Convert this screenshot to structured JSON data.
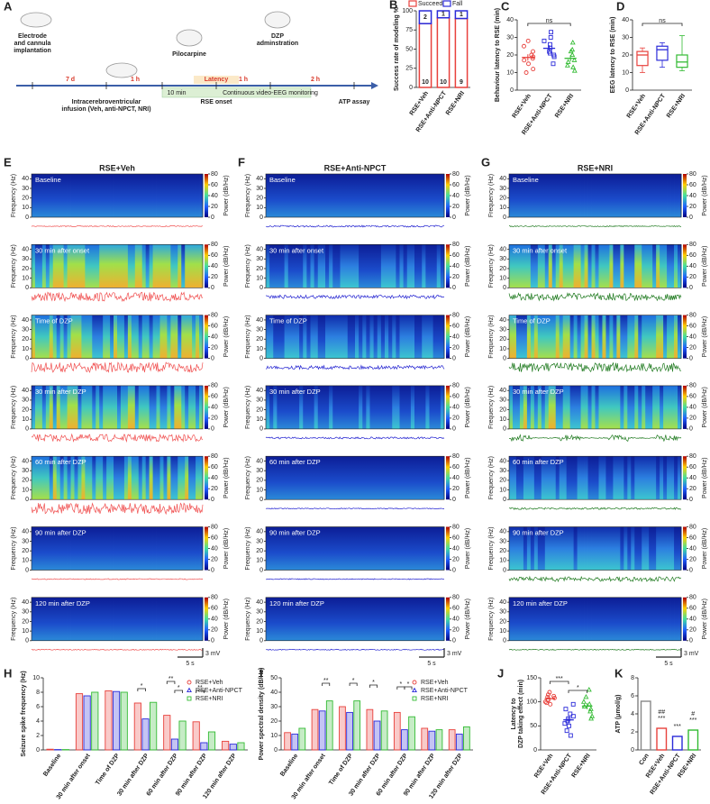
{
  "timeline": {
    "label": "A",
    "steps": [
      {
        "lines": [
          "Electrode",
          "and cannula",
          "implantation"
        ]
      },
      {
        "lines": [
          "Intracerebroventricular",
          "infusion (Veh, anti-NPCT, NRI)"
        ]
      },
      {
        "lines": [
          "Pilocarpine"
        ]
      },
      {
        "lines": [
          "RSE onset"
        ]
      },
      {
        "lines": [
          "DZP",
          "adminstration"
        ]
      },
      {
        "lines": [
          "ATP assay"
        ]
      }
    ],
    "intervals": [
      "7 d",
      "1 h",
      "Latency",
      "1 h",
      "2 h"
    ],
    "band": [
      "10 min",
      "Continuous video-EEG monitoring"
    ]
  },
  "spectrograms": {
    "panels": [
      {
        "label": "E",
        "title": "RSE+Veh",
        "color": "#f05050"
      },
      {
        "label": "F",
        "title": "RSE+Anti-NPCT",
        "color": "#2020d0"
      },
      {
        "label": "G",
        "title": "RSE+NRI",
        "color": "#1f7a1f"
      }
    ],
    "rows": [
      "Baseline",
      "30 min after onset",
      "Time of DZP",
      "30 min after DZP",
      "60 min after DZP",
      "90 min after DZP",
      "120 min after DZP"
    ],
    "freq_axis": {
      "label": "Frequency (Hz)",
      "lim": [
        0,
        45
      ],
      "ticks": [
        0,
        10,
        20,
        30,
        40
      ]
    },
    "power_axis": {
      "label": "Power (dB/Hz)",
      "lim": [
        0,
        80
      ],
      "ticks": [
        0,
        20,
        40,
        60,
        80
      ]
    },
    "time_scale": "5 s",
    "amp_scale": "3 mV"
  },
  "chart_data": [
    {
      "type": "bar",
      "label": "B",
      "stacked": true,
      "legend": "top",
      "y_label": "Success rate of modeling %",
      "categories": [
        "RSE+Veh",
        "RSE+Anti-NPCT",
        "RSE+NRI"
      ],
      "series": [
        {
          "name": "Succeed",
          "color": "#e8413c",
          "values": [
            83.3,
            90.9,
            90
          ],
          "counts": [
            10,
            10,
            9
          ]
        },
        {
          "name": "Fall",
          "color": "#2b2bd9",
          "values": [
            16.7,
            9.1,
            10
          ],
          "counts": [
            2,
            1,
            1
          ]
        }
      ],
      "ylim": [
        0,
        100
      ],
      "yticks": [
        0,
        25,
        50,
        75,
        100
      ]
    },
    {
      "type": "dot",
      "label": "C",
      "y_label": "Behaviour latency to RSE (min)",
      "categories": [
        "RSE+Veh",
        "RSE+Anti-NPCT",
        "RSE+NRI"
      ],
      "colors": [
        "#e8413c",
        "#2b2bd9",
        "#33bb33"
      ],
      "markers": [
        "circle",
        "square",
        "triangle"
      ],
      "points": [
        [
          28,
          25,
          22,
          20,
          19,
          18,
          17,
          15,
          12,
          10
        ],
        [
          33,
          30,
          28,
          26,
          24,
          22,
          21,
          20,
          19,
          15
        ],
        [
          27,
          23,
          22,
          20,
          17,
          16,
          14,
          13,
          11
        ]
      ],
      "means": [
        18.6,
        23.8,
        18.1
      ],
      "sems": [
        1.8,
        1.7,
        1.8
      ],
      "annotations": [
        "ns"
      ],
      "ylim": [
        0,
        40
      ],
      "yticks": [
        0,
        10,
        20,
        30,
        40
      ]
    },
    {
      "type": "box",
      "label": "D",
      "y_label": "EEG latency to RSE (min)",
      "categories": [
        "RSE+Veh",
        "RSE+Anti-NPCT",
        "RSE+NRI"
      ],
      "colors": [
        "#e8413c",
        "#2b2bd9",
        "#33bb33"
      ],
      "boxes": [
        {
          "min": 10,
          "q1": 14,
          "median": 20,
          "q3": 22,
          "max": 24
        },
        {
          "min": 13,
          "q1": 17,
          "median": 23,
          "q3": 25,
          "max": 27
        },
        {
          "min": 11,
          "q1": 13,
          "median": 16,
          "q3": 20,
          "max": 31
        }
      ],
      "annotations": [
        "ns"
      ],
      "ylim": [
        0,
        40
      ],
      "yticks": [
        0,
        10,
        20,
        30,
        40
      ]
    },
    {
      "type": "bar",
      "label": "H",
      "legend": "upper right",
      "y_label": "Seizure spike frequency (Hz)",
      "categories": [
        "Baseline",
        "30 min after onset",
        "Time of DZP",
        "30 min after DZP",
        "60 min after DZP",
        "90 min after DZP",
        "120 min after DZP"
      ],
      "series": [
        {
          "name": "RSE+Veh",
          "color": "#e8413c",
          "values": [
            0.1,
            7.8,
            8.2,
            6.5,
            4.8,
            3.9,
            1.2
          ]
        },
        {
          "name": "RSE+Anti-NPCT",
          "color": "#2b2bd9",
          "values": [
            0.05,
            7.5,
            8.1,
            4.3,
            1.5,
            1.0,
            0.8
          ]
        },
        {
          "name": "RSE+NRI",
          "color": "#33bb33",
          "values": [
            0.05,
            8.0,
            8.0,
            6.6,
            4.0,
            2.5,
            1.0
          ]
        }
      ],
      "annotations": [
        "*",
        "**",
        "*",
        "**"
      ],
      "ylim": [
        0,
        10
      ],
      "yticks": [
        0,
        2,
        4,
        6,
        8,
        10
      ]
    },
    {
      "type": "bar",
      "label": "I",
      "legend": "upper right",
      "y_label": "Power spectral density (dB/Hz)",
      "categories": [
        "Baseline",
        "30 min after onset",
        "Time of DZP",
        "30 min after DZP",
        "60 min after DZP",
        "90 min after DZP",
        "120 min after DZP"
      ],
      "series": [
        {
          "name": "RSE+Veh",
          "color": "#e8413c",
          "values": [
            12,
            28,
            30,
            28,
            26,
            15,
            14
          ]
        },
        {
          "name": "RSE+Anti-NPCT",
          "color": "#2b2bd9",
          "values": [
            11,
            27,
            26,
            20,
            14,
            13,
            11
          ]
        },
        {
          "name": "RSE+NRI",
          "color": "#33bb33",
          "values": [
            15,
            34,
            34,
            27,
            23,
            14,
            16
          ]
        }
      ],
      "annotations": [
        "**",
        "*",
        "*",
        "*",
        "*"
      ],
      "ylim": [
        0,
        50
      ],
      "yticks": [
        0,
        10,
        20,
        30,
        40,
        50
      ]
    },
    {
      "type": "dot",
      "label": "J",
      "y_label": [
        "Latency to",
        "DZP taking effect (min)"
      ],
      "categories": [
        "RSE+Veh",
        "RSE+Anti-NPCT",
        "RSE+NRI"
      ],
      "colors": [
        "#e8413c",
        "#2b2bd9",
        "#33bb33"
      ],
      "markers": [
        "circle",
        "square",
        "triangle"
      ],
      "points": [
        [
          120,
          115,
          112,
          110,
          108,
          105,
          103,
          100,
          98,
          95
        ],
        [
          95,
          85,
          75,
          70,
          65,
          60,
          55,
          50,
          40,
          30
        ],
        [
          125,
          110,
          100,
          95,
          90,
          85,
          80,
          70,
          65
        ]
      ],
      "means": [
        106.6,
        62.5,
        91.1
      ],
      "sems": [
        2.4,
        6.4,
        6.5
      ],
      "annotations": [
        "***",
        "*"
      ],
      "ylim": [
        0,
        150
      ],
      "yticks": [
        0,
        50,
        100,
        150
      ]
    },
    {
      "type": "bar",
      "label": "K",
      "y_label": "ATP (μmol/g)",
      "categories": [
        "Con",
        "RSE+Veh",
        "RSE+Anti-NPCT",
        "RSE+NRI"
      ],
      "values": [
        5.4,
        2.4,
        1.5,
        2.2
      ],
      "colors": [
        "#888888",
        "#e8413c",
        "#2b2bd9",
        "#33bb33"
      ],
      "annotations": [
        "##",
        "***",
        "***",
        "#",
        "***"
      ],
      "ylim": [
        0,
        8
      ],
      "yticks": [
        0,
        2,
        4,
        6,
        8
      ]
    }
  ]
}
